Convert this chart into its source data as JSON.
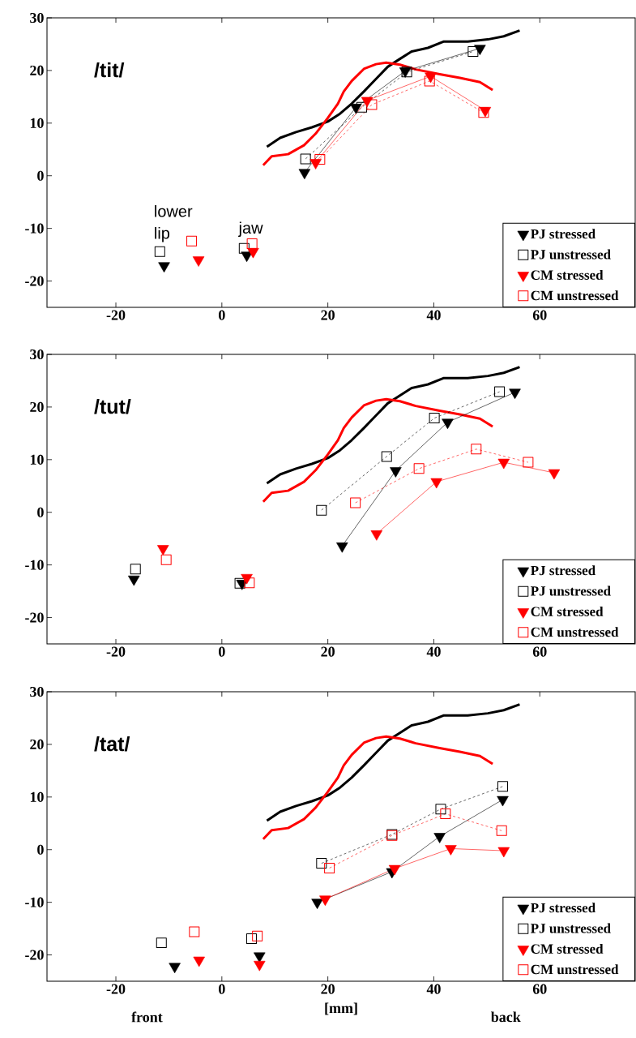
{
  "chart_data": [
    {
      "type": "line",
      "title": "/tit/",
      "xlim": [
        -33,
        78
      ],
      "ylim": [
        -25,
        30
      ],
      "xticks": [
        -20,
        0,
        20,
        40,
        60
      ],
      "yticks": [
        -20,
        -10,
        0,
        10,
        20,
        30
      ],
      "legend": "bottom right",
      "annotations": [
        {
          "text": "lower lip",
          "x": -11,
          "y": -15
        },
        {
          "text": "jaw",
          "x": 5,
          "y": -14
        }
      ],
      "series": [
        {
          "color": "#000000",
          "marker": "none",
          "line_style": "solid",
          "x": [
            8.5,
            11,
            14,
            17,
            20,
            22.3,
            24.5,
            26.8,
            29.1,
            31.3,
            33.6,
            35.8,
            38.9,
            41.9,
            46.4,
            50.2,
            53.2,
            56.2
          ],
          "values": [
            5.5,
            7.2,
            8.3,
            9.2,
            10.3,
            11.8,
            13.7,
            16,
            18.4,
            20.7,
            22.2,
            23.6,
            24.3,
            25.5,
            25.5,
            25.9,
            26.5,
            27.6
          ]
        },
        {
          "color": "#ff0000",
          "marker": "none",
          "line_style": "solid",
          "x": [
            7.8,
            9.4,
            12.5,
            15.5,
            17.7,
            20,
            21.9,
            23,
            24.5,
            26.8,
            29.1,
            31,
            33.6,
            36.6,
            41.1,
            44.9,
            48.7,
            51.1
          ],
          "values": [
            2.0,
            3.7,
            4.1,
            5.8,
            8,
            11,
            13.7,
            16,
            18,
            20.3,
            21.2,
            21.5,
            21.1,
            20.2,
            19.3,
            18.6,
            17.8,
            16.3
          ]
        },
        {
          "name": "PJ stressed",
          "color": "#000000",
          "marker": "triangle",
          "line_style": "solid",
          "x": [
            -10.9,
            null,
            4.7,
            null,
            15.6,
            25.3,
            34.6,
            48.7
          ],
          "values": [
            -17.1,
            null,
            -15.1,
            null,
            0.6,
            13,
            19.9,
            24.2
          ]
        },
        {
          "name": "PJ unstressed",
          "color": "#000000",
          "marker": "square",
          "line_style": "dashed",
          "x": [
            -11.7,
            null,
            4.2,
            null,
            15.8,
            26.4,
            34.9,
            47.4
          ],
          "values": [
            -14.4,
            null,
            -13.8,
            null,
            3.2,
            13,
            19.7,
            23.6
          ]
        },
        {
          "name": "CM stressed",
          "color": "#ff0000",
          "marker": "triangle",
          "line_style": "solid",
          "x": [
            -4.4,
            null,
            5.9,
            null,
            17.7,
            27.4,
            39.4,
            49.7
          ],
          "values": [
            -16,
            null,
            -14.4,
            null,
            2.5,
            14.3,
            18.9,
            12.4
          ]
        },
        {
          "name": "CM unstressed",
          "color": "#ff0000",
          "marker": "square",
          "line_style": "dashed",
          "x": [
            -5.7,
            null,
            5.7,
            null,
            18.5,
            28.3,
            39.2,
            49.4
          ],
          "values": [
            -12.4,
            null,
            -12.9,
            null,
            3.1,
            13.5,
            18,
            12
          ]
        }
      ]
    },
    {
      "type": "line",
      "title": "/tut/",
      "xlim": [
        -33,
        78
      ],
      "ylim": [
        -25,
        30
      ],
      "xticks": [
        -20,
        0,
        20,
        40,
        60
      ],
      "yticks": [
        -20,
        -10,
        0,
        10,
        20,
        30
      ],
      "legend": "bottom right",
      "series": [
        {
          "color": "#000000",
          "marker": "none",
          "line_style": "solid",
          "x": [
            8.5,
            11,
            14,
            17,
            20,
            22.3,
            24.5,
            26.8,
            29.1,
            31.3,
            33.6,
            35.8,
            38.9,
            41.9,
            46.4,
            50.2,
            53.2,
            56.2
          ],
          "values": [
            5.5,
            7.2,
            8.3,
            9.2,
            10.3,
            11.8,
            13.7,
            16,
            18.4,
            20.7,
            22.2,
            23.6,
            24.3,
            25.5,
            25.5,
            25.9,
            26.5,
            27.6
          ]
        },
        {
          "color": "#ff0000",
          "marker": "none",
          "line_style": "solid",
          "x": [
            7.8,
            9.4,
            12.5,
            15.5,
            17.7,
            20,
            21.9,
            23,
            24.5,
            26.8,
            29.1,
            31,
            33.6,
            36.6,
            41.1,
            44.9,
            48.7,
            51.1
          ],
          "values": [
            2.0,
            3.7,
            4.1,
            5.8,
            8,
            11,
            13.7,
            16,
            18,
            20.3,
            21.2,
            21.5,
            21.1,
            20.2,
            19.3,
            18.6,
            17.8,
            16.3
          ]
        },
        {
          "name": "PJ stressed",
          "color": "#000000",
          "marker": "triangle",
          "line_style": "solid",
          "x": [
            -16.6,
            null,
            3.8,
            null,
            22.7,
            32.8,
            42.6,
            55.3
          ],
          "values": [
            -12.7,
            null,
            -13.5,
            null,
            -6.4,
            7.9,
            17.1,
            22.8
          ]
        },
        {
          "name": "PJ unstressed",
          "color": "#000000",
          "marker": "square",
          "line_style": "dashed",
          "x": [
            -16.3,
            null,
            3.4,
            null,
            18.8,
            31.1,
            40.1,
            52.4
          ],
          "values": [
            -10.8,
            null,
            -13.5,
            null,
            0.4,
            10.6,
            17.9,
            22.9
          ]
        },
        {
          "name": "CM stressed",
          "color": "#ff0000",
          "marker": "triangle",
          "line_style": "solid",
          "x": [
            -11.1,
            null,
            4.7,
            null,
            29.2,
            40.5,
            53.2,
            62.7
          ],
          "values": [
            -6.9,
            null,
            -12.4,
            null,
            -4.1,
            5.8,
            9.5,
            7.5
          ]
        },
        {
          "name": "CM unstressed",
          "color": "#ff0000",
          "marker": "square",
          "line_style": "dashed",
          "x": [
            -10.5,
            null,
            5.2,
            null,
            25.2,
            37.2,
            48,
            57.8
          ],
          "values": [
            -9,
            null,
            -13.4,
            null,
            1.8,
            8.3,
            12,
            9.5
          ]
        }
      ]
    },
    {
      "type": "line",
      "title": "/tat/",
      "xlabel": "[mm]",
      "xlim": [
        -33,
        78
      ],
      "ylim": [
        -25,
        30
      ],
      "xticks": [
        -20,
        0,
        20,
        40,
        60
      ],
      "yticks": [
        -20,
        -10,
        0,
        10,
        20,
        30
      ],
      "legend": "bottom right",
      "annotations": [
        "front",
        "back"
      ],
      "series": [
        {
          "color": "#000000",
          "marker": "none",
          "line_style": "solid",
          "x": [
            8.5,
            11,
            14,
            17,
            20,
            22.3,
            24.5,
            26.8,
            29.1,
            31.3,
            33.6,
            35.8,
            38.9,
            41.9,
            46.4,
            50.2,
            53.2,
            56.2
          ],
          "values": [
            5.5,
            7.2,
            8.3,
            9.2,
            10.3,
            11.8,
            13.7,
            16,
            18.4,
            20.7,
            22.2,
            23.6,
            24.3,
            25.5,
            25.5,
            25.9,
            26.5,
            27.6
          ]
        },
        {
          "color": "#ff0000",
          "marker": "none",
          "line_style": "solid",
          "x": [
            7.8,
            9.4,
            12.5,
            15.5,
            17.7,
            20,
            21.9,
            23,
            24.5,
            26.8,
            29.1,
            31,
            33.6,
            36.6,
            41.1,
            44.9,
            48.7,
            51.1
          ],
          "values": [
            2.0,
            3.7,
            4.1,
            5.8,
            8,
            11,
            13.7,
            16,
            18,
            20.3,
            21.2,
            21.5,
            21.1,
            20.2,
            19.3,
            18.6,
            17.8,
            16.3
          ]
        },
        {
          "name": "PJ stressed",
          "color": "#000000",
          "marker": "triangle",
          "line_style": "solid",
          "x": [
            -8.9,
            null,
            7.1,
            null,
            18,
            32.1,
            41.1,
            53
          ],
          "values": [
            -22.2,
            null,
            -20.2,
            null,
            -10,
            -4.2,
            2.5,
            9.5
          ]
        },
        {
          "name": "PJ unstressed",
          "color": "#000000",
          "marker": "square",
          "line_style": "dashed",
          "x": [
            -11.4,
            null,
            5.6,
            null,
            18.8,
            32.1,
            41.3,
            53
          ],
          "values": [
            -17.7,
            null,
            -16.9,
            null,
            -2.6,
            2.9,
            7.7,
            12
          ]
        },
        {
          "name": "CM stressed",
          "color": "#ff0000",
          "marker": "triangle",
          "line_style": "solid",
          "x": [
            -4.3,
            null,
            7.1,
            null,
            19.5,
            32.6,
            43.2,
            53.2
          ],
          "values": [
            -21,
            null,
            -21.8,
            null,
            -9.4,
            -3.6,
            0.2,
            -0.2
          ]
        },
        {
          "name": "CM unstressed",
          "color": "#ff0000",
          "marker": "square",
          "line_style": "dashed",
          "x": [
            -5.2,
            null,
            6.7,
            null,
            20.3,
            32.1,
            42.2,
            52.8
          ],
          "values": [
            -15.6,
            null,
            -16.4,
            null,
            -3.5,
            2.7,
            6.8,
            3.6
          ]
        }
      ]
    }
  ]
}
